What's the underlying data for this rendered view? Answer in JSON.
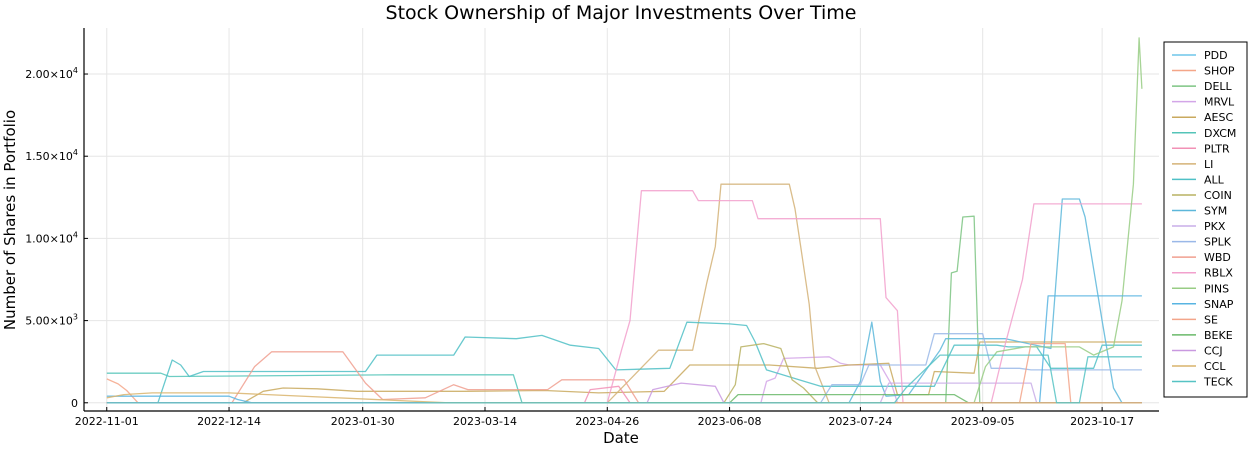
{
  "chart_data": {
    "type": "line",
    "title": "Stock Ownership of Major Investments Over Time",
    "xlabel": "Date",
    "ylabel": "Number of Shares in Portfolio",
    "x_type": "date",
    "xlim": [
      "2022-10-24",
      "2023-11-06"
    ],
    "ylim": [
      -500,
      22800
    ],
    "x_ticks": [
      "2022-11-01",
      "2022-12-14",
      "2023-01-30",
      "2023-03-14",
      "2023-04-26",
      "2023-06-08",
      "2023-07-24",
      "2023-09-05",
      "2023-10-17"
    ],
    "y_ticks": [
      {
        "value": 0,
        "label": "0",
        "mant": "",
        "exp": ""
      },
      {
        "value": 5000,
        "label": "5.00×10³",
        "mant": "5.00×10",
        "exp": "3"
      },
      {
        "value": 10000,
        "label": "1.00×10⁴",
        "mant": "1.00×10",
        "exp": "4"
      },
      {
        "value": 15000,
        "label": "1.50×10⁴",
        "mant": "1.50×10",
        "exp": "4"
      },
      {
        "value": 20000,
        "label": "2.00×10⁴",
        "mant": "2.00×10",
        "exp": "4"
      }
    ],
    "grid": true,
    "legend_position": "right",
    "series": [
      {
        "name": "PDD",
        "color": "#6ec6ea",
        "points": [
          [
            "2022-11-01",
            0
          ],
          [
            "2023-10-31",
            0
          ]
        ]
      },
      {
        "name": "SHOP",
        "color": "#f4a688",
        "points": [
          [
            "2022-11-01",
            1450
          ],
          [
            "2022-11-05",
            1150
          ],
          [
            "2022-11-08",
            750
          ],
          [
            "2022-11-12",
            0
          ],
          [
            "2023-10-31",
            0
          ]
        ]
      },
      {
        "name": "DELL",
        "color": "#7dc483",
        "points": [
          [
            "2022-11-01",
            0
          ],
          [
            "2023-08-23",
            0
          ],
          [
            "2023-08-25",
            7900
          ],
          [
            "2023-08-27",
            8000
          ],
          [
            "2023-08-29",
            11300
          ],
          [
            "2023-09-02",
            11350
          ],
          [
            "2023-09-04",
            0
          ],
          [
            "2023-10-31",
            0
          ]
        ]
      },
      {
        "name": "MRVL",
        "color": "#d3a6e8",
        "points": [
          [
            "2022-11-01",
            0
          ],
          [
            "2023-06-19",
            0
          ],
          [
            "2023-06-21",
            1300
          ],
          [
            "2023-06-24",
            1500
          ],
          [
            "2023-06-27",
            2700
          ],
          [
            "2023-07-13",
            2800
          ],
          [
            "2023-07-17",
            2400
          ],
          [
            "2023-07-20",
            2300
          ],
          [
            "2023-07-31",
            2300
          ],
          [
            "2023-08-04",
            1100
          ],
          [
            "2023-08-06",
            0
          ],
          [
            "2023-10-31",
            0
          ]
        ]
      },
      {
        "name": "AESC",
        "color": "#c9a95e",
        "points": [
          [
            "2022-11-01",
            0
          ],
          [
            "2022-12-19",
            0
          ],
          [
            "2022-12-26",
            700
          ],
          [
            "2023-01-02",
            900
          ],
          [
            "2023-01-14",
            850
          ],
          [
            "2023-01-28",
            700
          ],
          [
            "2023-03-07",
            700
          ],
          [
            "2023-04-04",
            750
          ],
          [
            "2023-04-23",
            600
          ],
          [
            "2023-05-16",
            700
          ],
          [
            "2023-05-25",
            2300
          ],
          [
            "2023-06-22",
            2300
          ],
          [
            "2023-07-09",
            2100
          ],
          [
            "2023-07-20",
            2300
          ],
          [
            "2023-08-03",
            2400
          ],
          [
            "2023-08-06",
            500
          ],
          [
            "2023-08-17",
            500
          ],
          [
            "2023-08-19",
            1900
          ],
          [
            "2023-09-02",
            1800
          ],
          [
            "2023-09-04",
            3700
          ],
          [
            "2023-10-31",
            3700
          ]
        ]
      },
      {
        "name": "DXCM",
        "color": "#54c4b8",
        "points": [
          [
            "2022-11-01",
            1800
          ],
          [
            "2022-11-20",
            1800
          ],
          [
            "2022-11-23",
            1600
          ],
          [
            "2023-02-10",
            1700
          ],
          [
            "2023-03-24",
            1700
          ],
          [
            "2023-03-27",
            0
          ],
          [
            "2023-10-31",
            0
          ]
        ]
      },
      {
        "name": "PLTR",
        "color": "#f291b6",
        "points": [
          [
            "2022-11-01",
            0
          ],
          [
            "2023-04-18",
            0
          ],
          [
            "2023-04-20",
            800
          ],
          [
            "2023-04-30",
            1000
          ],
          [
            "2023-05-04",
            0
          ],
          [
            "2023-10-31",
            0
          ]
        ]
      },
      {
        "name": "LI",
        "color": "#d4b277",
        "points": [
          [
            "2022-11-01",
            0
          ],
          [
            "2023-04-26",
            0
          ],
          [
            "2023-05-14",
            3200
          ],
          [
            "2023-05-26",
            3200
          ],
          [
            "2023-05-31",
            7300
          ],
          [
            "2023-06-03",
            9500
          ],
          [
            "2023-06-05",
            13300
          ],
          [
            "2023-06-29",
            13300
          ],
          [
            "2023-07-01",
            11800
          ],
          [
            "2023-07-03",
            9500
          ],
          [
            "2023-07-06",
            6000
          ],
          [
            "2023-07-08",
            2200
          ],
          [
            "2023-07-13",
            0
          ],
          [
            "2023-10-31",
            0
          ]
        ]
      },
      {
        "name": "ALL",
        "color": "#4fc0c6",
        "points": [
          [
            "2022-11-01",
            0
          ],
          [
            "2022-11-19",
            0
          ],
          [
            "2022-11-24",
            2600
          ],
          [
            "2022-11-27",
            2300
          ],
          [
            "2022-11-30",
            1600
          ],
          [
            "2022-12-05",
            1900
          ],
          [
            "2023-01-03",
            1900
          ],
          [
            "2023-01-31",
            1900
          ],
          [
            "2023-02-04",
            2900
          ],
          [
            "2023-03-03",
            2900
          ],
          [
            "2023-03-07",
            4000
          ],
          [
            "2023-03-25",
            3900
          ],
          [
            "2023-04-03",
            4100
          ],
          [
            "2023-04-13",
            3500
          ],
          [
            "2023-04-23",
            3300
          ],
          [
            "2023-04-29",
            2000
          ],
          [
            "2023-05-18",
            2100
          ],
          [
            "2023-05-24",
            4900
          ],
          [
            "2023-06-08",
            4800
          ],
          [
            "2023-06-14",
            4700
          ],
          [
            "2023-06-17",
            3700
          ],
          [
            "2023-06-21",
            2000
          ],
          [
            "2023-07-10",
            1000
          ],
          [
            "2023-08-19",
            1000
          ],
          [
            "2023-08-26",
            3500
          ],
          [
            "2023-09-10",
            3500
          ],
          [
            "2023-09-14",
            3400
          ],
          [
            "2023-09-24",
            3400
          ],
          [
            "2023-09-29",
            2100
          ],
          [
            "2023-10-14",
            2100
          ],
          [
            "2023-10-17",
            3500
          ],
          [
            "2023-10-31",
            3500
          ]
        ]
      },
      {
        "name": "COIN",
        "color": "#b8b262",
        "points": [
          [
            "2022-11-01",
            0
          ],
          [
            "2023-06-06",
            0
          ],
          [
            "2023-06-10",
            1100
          ],
          [
            "2023-06-12",
            3400
          ],
          [
            "2023-06-20",
            3600
          ],
          [
            "2023-06-26",
            3300
          ],
          [
            "2023-06-30",
            1400
          ],
          [
            "2023-07-04",
            900
          ],
          [
            "2023-07-09",
            0
          ],
          [
            "2023-10-31",
            0
          ]
        ]
      },
      {
        "name": "SYM",
        "color": "#5cb7da",
        "points": [
          [
            "2022-11-01",
            0
          ],
          [
            "2023-07-20",
            0
          ],
          [
            "2023-07-24",
            1300
          ],
          [
            "2023-07-28",
            4900
          ],
          [
            "2023-07-31",
            1300
          ],
          [
            "2023-08-02",
            400
          ],
          [
            "2023-08-10",
            500
          ],
          [
            "2023-08-21",
            3200
          ],
          [
            "2023-08-23",
            3900
          ],
          [
            "2023-09-13",
            3900
          ],
          [
            "2023-09-29",
            3300
          ],
          [
            "2023-10-03",
            12400
          ],
          [
            "2023-10-09",
            12400
          ],
          [
            "2023-10-11",
            11300
          ],
          [
            "2023-10-17",
            5000
          ],
          [
            "2023-10-21",
            900
          ],
          [
            "2023-10-24",
            0
          ],
          [
            "2023-10-31",
            0
          ]
        ]
      },
      {
        "name": "PKX",
        "color": "#c9aee8",
        "points": [
          [
            "2022-11-01",
            0
          ],
          [
            "2023-07-31",
            0
          ],
          [
            "2023-08-03",
            1200
          ],
          [
            "2023-09-05",
            1200
          ],
          [
            "2023-09-22",
            1200
          ],
          [
            "2023-09-24",
            0
          ],
          [
            "2023-10-31",
            0
          ]
        ]
      },
      {
        "name": "SPLK",
        "color": "#9ab8e8",
        "points": [
          [
            "2022-11-01",
            0
          ],
          [
            "2023-07-10",
            0
          ],
          [
            "2023-07-14",
            1100
          ],
          [
            "2023-07-24",
            1100
          ],
          [
            "2023-07-27",
            2300
          ],
          [
            "2023-08-16",
            2300
          ],
          [
            "2023-08-19",
            4200
          ],
          [
            "2023-09-05",
            4200
          ],
          [
            "2023-09-08",
            2100
          ],
          [
            "2023-09-18",
            2100
          ],
          [
            "2023-09-22",
            2000
          ],
          [
            "2023-10-31",
            2000
          ]
        ]
      },
      {
        "name": "WBD",
        "color": "#f09f8f",
        "points": [
          [
            "2022-11-01",
            0
          ],
          [
            "2022-12-15",
            0
          ],
          [
            "2022-12-23",
            2200
          ],
          [
            "2022-12-29",
            3100
          ],
          [
            "2023-01-23",
            3100
          ],
          [
            "2023-01-31",
            1200
          ],
          [
            "2023-02-06",
            200
          ],
          [
            "2023-02-21",
            300
          ],
          [
            "2023-03-03",
            1100
          ],
          [
            "2023-03-08",
            800
          ],
          [
            "2023-04-05",
            800
          ],
          [
            "2023-04-10",
            1400
          ],
          [
            "2023-05-02",
            1400
          ],
          [
            "2023-05-07",
            0
          ],
          [
            "2023-10-31",
            0
          ]
        ]
      },
      {
        "name": "RBLX",
        "color": "#f2a0cd",
        "points": [
          [
            "2022-11-01",
            0
          ],
          [
            "2023-04-26",
            0
          ],
          [
            "2023-05-01",
            3200
          ],
          [
            "2023-05-04",
            5000
          ],
          [
            "2023-05-08",
            12900
          ],
          [
            "2023-05-26",
            12900
          ],
          [
            "2023-05-28",
            12300
          ],
          [
            "2023-06-16",
            12300
          ],
          [
            "2023-06-18",
            11200
          ],
          [
            "2023-07-31",
            11200
          ],
          [
            "2023-08-02",
            6400
          ],
          [
            "2023-08-06",
            5600
          ],
          [
            "2023-08-08",
            0
          ],
          [
            "2023-09-08",
            0
          ],
          [
            "2023-09-13",
            3600
          ],
          [
            "2023-09-19",
            7500
          ],
          [
            "2023-09-23",
            12100
          ],
          [
            "2023-10-31",
            12100
          ]
        ]
      },
      {
        "name": "PINS",
        "color": "#98cc84",
        "points": [
          [
            "2022-11-01",
            0
          ],
          [
            "2023-09-02",
            0
          ],
          [
            "2023-09-06",
            2200
          ],
          [
            "2023-09-10",
            3100
          ],
          [
            "2023-09-20",
            3400
          ],
          [
            "2023-10-09",
            3400
          ],
          [
            "2023-10-14",
            2900
          ],
          [
            "2023-10-21",
            3400
          ],
          [
            "2023-10-24",
            6200
          ],
          [
            "2023-10-28",
            13300
          ],
          [
            "2023-10-30",
            22200
          ],
          [
            "2023-10-31",
            19100
          ]
        ]
      },
      {
        "name": "SNAP",
        "color": "#58b4e2",
        "points": [
          [
            "2022-11-01",
            400
          ],
          [
            "2022-12-14",
            400
          ],
          [
            "2022-12-17",
            200
          ],
          [
            "2022-12-22",
            0
          ],
          [
            "2023-09-25",
            0
          ],
          [
            "2023-09-28",
            6500
          ],
          [
            "2023-10-31",
            6500
          ]
        ]
      },
      {
        "name": "SE",
        "color": "#f3a58a",
        "points": [
          [
            "2022-11-01",
            0
          ],
          [
            "2023-09-18",
            0
          ],
          [
            "2023-09-22",
            3600
          ],
          [
            "2023-10-04",
            3600
          ],
          [
            "2023-10-06",
            0
          ],
          [
            "2023-10-31",
            0
          ]
        ]
      },
      {
        "name": "BEKE",
        "color": "#6ab96a",
        "points": [
          [
            "2022-11-01",
            0
          ],
          [
            "2023-06-08",
            0
          ],
          [
            "2023-06-11",
            500
          ],
          [
            "2023-08-26",
            500
          ],
          [
            "2023-08-31",
            0
          ],
          [
            "2023-10-31",
            0
          ]
        ]
      },
      {
        "name": "CCJ",
        "color": "#c999e0",
        "points": [
          [
            "2022-11-01",
            0
          ],
          [
            "2023-05-10",
            0
          ],
          [
            "2023-05-12",
            800
          ],
          [
            "2023-05-22",
            1200
          ],
          [
            "2023-06-03",
            1000
          ],
          [
            "2023-06-06",
            0
          ],
          [
            "2023-10-31",
            0
          ]
        ]
      },
      {
        "name": "CCL",
        "color": "#d9b46c",
        "points": [
          [
            "2022-11-01",
            300
          ],
          [
            "2022-11-07",
            500
          ],
          [
            "2022-11-17",
            600
          ],
          [
            "2022-12-14",
            600
          ],
          [
            "2023-03-01",
            0
          ],
          [
            "2023-10-31",
            0
          ]
        ]
      },
      {
        "name": "TECK",
        "color": "#56c3c4",
        "points": [
          [
            "2022-11-01",
            0
          ],
          [
            "2023-08-05",
            0
          ],
          [
            "2023-08-09",
            900
          ],
          [
            "2023-08-21",
            2900
          ],
          [
            "2023-09-05",
            2900
          ],
          [
            "2023-09-28",
            2900
          ],
          [
            "2023-10-01",
            0
          ],
          [
            "2023-10-09",
            0
          ],
          [
            "2023-10-12",
            2800
          ],
          [
            "2023-10-31",
            2800
          ]
        ]
      }
    ]
  }
}
